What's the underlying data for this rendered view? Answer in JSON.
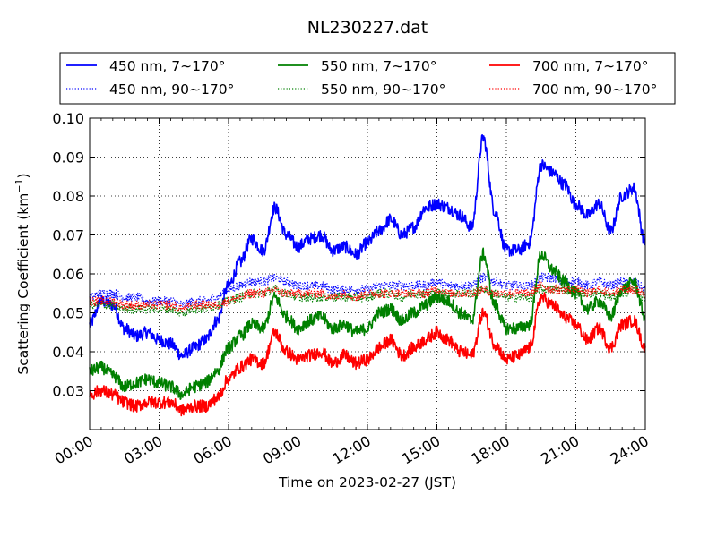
{
  "chart_data": {
    "type": "line",
    "title": "NL230227.dat",
    "xlabel": "Time on 2023-02-27 (JST)",
    "ylabel_main": "Scattering Coefficient (km",
    "ylabel_sup": "−1",
    "ylabel_end": ")",
    "xlim": [
      0,
      24
    ],
    "ylim": [
      0.02,
      0.1
    ],
    "x_ticks": [
      0,
      3,
      6,
      9,
      12,
      15,
      18,
      21,
      24
    ],
    "x_tick_labels": [
      "00:00",
      "03:00",
      "06:00",
      "09:00",
      "12:00",
      "15:00",
      "18:00",
      "21:00",
      "24:00"
    ],
    "y_ticks": [
      0.03,
      0.04,
      0.05,
      0.06,
      0.07,
      0.08,
      0.09,
      0.1
    ],
    "y_tick_labels": [
      "0.03",
      "0.04",
      "0.05",
      "0.06",
      "0.07",
      "0.08",
      "0.09",
      "0.10"
    ],
    "grid": true,
    "legend_position": "top",
    "series": [
      {
        "name": "450 nm, 7∼170°",
        "color": "#0000ff",
        "style": "solid",
        "x": [
          0,
          0.5,
          1,
          1.5,
          2,
          2.5,
          3,
          3.5,
          4,
          4.5,
          5,
          5.5,
          6,
          6.5,
          7,
          7.5,
          8,
          8.5,
          9,
          9.5,
          10,
          10.5,
          11,
          11.5,
          12,
          12.5,
          13,
          13.5,
          14,
          14.5,
          15,
          15.5,
          16,
          16.5,
          17,
          17.5,
          18,
          18.5,
          19,
          19.5,
          20,
          20.5,
          21,
          21.5,
          22,
          22.5,
          23,
          23.5,
          24
        ],
        "y": [
          0.047,
          0.053,
          0.052,
          0.046,
          0.044,
          0.045,
          0.043,
          0.042,
          0.039,
          0.041,
          0.043,
          0.048,
          0.057,
          0.063,
          0.069,
          0.066,
          0.077,
          0.07,
          0.067,
          0.069,
          0.07,
          0.066,
          0.067,
          0.065,
          0.068,
          0.071,
          0.074,
          0.07,
          0.072,
          0.077,
          0.078,
          0.077,
          0.075,
          0.072,
          0.095,
          0.076,
          0.066,
          0.066,
          0.068,
          0.088,
          0.086,
          0.083,
          0.078,
          0.075,
          0.078,
          0.071,
          0.08,
          0.082,
          0.068
        ]
      },
      {
        "name": "450 nm, 90∼170°",
        "color": "#0000ff",
        "style": "dotted",
        "x": [
          0,
          0.5,
          1,
          1.5,
          2,
          2.5,
          3,
          3.5,
          4,
          4.5,
          5,
          5.5,
          6,
          6.5,
          7,
          7.5,
          8,
          8.5,
          9,
          9.5,
          10,
          10.5,
          11,
          11.5,
          12,
          12.5,
          13,
          13.5,
          14,
          14.5,
          15,
          15.5,
          16,
          16.5,
          17,
          17.5,
          18,
          18.5,
          19,
          19.5,
          20,
          20.5,
          21,
          21.5,
          22,
          22.5,
          23,
          23.5,
          24
        ],
        "y": [
          0.054,
          0.055,
          0.055,
          0.054,
          0.054,
          0.053,
          0.053,
          0.053,
          0.052,
          0.053,
          0.053,
          0.054,
          0.056,
          0.057,
          0.058,
          0.058,
          0.059,
          0.058,
          0.057,
          0.057,
          0.057,
          0.056,
          0.056,
          0.056,
          0.056,
          0.057,
          0.057,
          0.057,
          0.057,
          0.057,
          0.058,
          0.057,
          0.057,
          0.057,
          0.059,
          0.058,
          0.057,
          0.057,
          0.057,
          0.059,
          0.059,
          0.058,
          0.058,
          0.057,
          0.058,
          0.057,
          0.058,
          0.058,
          0.056
        ]
      },
      {
        "name": "550 nm, 7∼170°",
        "color": "#008000",
        "style": "solid",
        "x": [
          0,
          0.5,
          1,
          1.5,
          2,
          2.5,
          3,
          3.5,
          4,
          4.5,
          5,
          5.5,
          6,
          6.5,
          7,
          7.5,
          8,
          8.5,
          9,
          9.5,
          10,
          10.5,
          11,
          11.5,
          12,
          12.5,
          13,
          13.5,
          14,
          14.5,
          15,
          15.5,
          16,
          16.5,
          17,
          17.5,
          18,
          18.5,
          19,
          19.5,
          20,
          20.5,
          21,
          21.5,
          22,
          22.5,
          23,
          23.5,
          24
        ],
        "y": [
          0.035,
          0.036,
          0.034,
          0.031,
          0.032,
          0.033,
          0.032,
          0.031,
          0.029,
          0.031,
          0.032,
          0.035,
          0.041,
          0.044,
          0.047,
          0.046,
          0.054,
          0.049,
          0.046,
          0.048,
          0.049,
          0.046,
          0.047,
          0.045,
          0.046,
          0.05,
          0.051,
          0.048,
          0.05,
          0.052,
          0.054,
          0.053,
          0.05,
          0.048,
          0.065,
          0.052,
          0.046,
          0.046,
          0.047,
          0.065,
          0.061,
          0.058,
          0.055,
          0.051,
          0.053,
          0.049,
          0.056,
          0.058,
          0.049
        ]
      },
      {
        "name": "550 nm, 90∼170°",
        "color": "#008000",
        "style": "dotted",
        "x": [
          0,
          0.5,
          1,
          1.5,
          2,
          2.5,
          3,
          3.5,
          4,
          4.5,
          5,
          5.5,
          6,
          6.5,
          7,
          7.5,
          8,
          8.5,
          9,
          9.5,
          10,
          10.5,
          11,
          11.5,
          12,
          12.5,
          13,
          13.5,
          14,
          14.5,
          15,
          15.5,
          16,
          16.5,
          17,
          17.5,
          18,
          18.5,
          19,
          19.5,
          20,
          20.5,
          21,
          21.5,
          22,
          22.5,
          23,
          23.5,
          24
        ],
        "y": [
          0.052,
          0.052,
          0.052,
          0.051,
          0.051,
          0.051,
          0.051,
          0.051,
          0.05,
          0.051,
          0.051,
          0.052,
          0.053,
          0.054,
          0.055,
          0.055,
          0.056,
          0.055,
          0.054,
          0.054,
          0.054,
          0.054,
          0.054,
          0.054,
          0.054,
          0.055,
          0.055,
          0.054,
          0.055,
          0.055,
          0.055,
          0.055,
          0.055,
          0.055,
          0.056,
          0.055,
          0.054,
          0.054,
          0.054,
          0.056,
          0.056,
          0.056,
          0.055,
          0.055,
          0.055,
          0.054,
          0.055,
          0.056,
          0.054
        ]
      },
      {
        "name": "700 nm, 7∼170°",
        "color": "#ff0000",
        "style": "solid",
        "x": [
          0,
          0.5,
          1,
          1.5,
          2,
          2.5,
          3,
          3.5,
          4,
          4.5,
          5,
          5.5,
          6,
          6.5,
          7,
          7.5,
          8,
          8.5,
          9,
          9.5,
          10,
          10.5,
          11,
          11.5,
          12,
          12.5,
          13,
          13.5,
          14,
          14.5,
          15,
          15.5,
          16,
          16.5,
          17,
          17.5,
          18,
          18.5,
          19,
          19.5,
          20,
          20.5,
          21,
          21.5,
          22,
          22.5,
          23,
          23.5,
          24
        ],
        "y": [
          0.029,
          0.03,
          0.029,
          0.027,
          0.026,
          0.027,
          0.027,
          0.027,
          0.025,
          0.026,
          0.026,
          0.028,
          0.033,
          0.036,
          0.038,
          0.037,
          0.045,
          0.04,
          0.038,
          0.039,
          0.04,
          0.037,
          0.039,
          0.037,
          0.038,
          0.041,
          0.043,
          0.039,
          0.041,
          0.043,
          0.045,
          0.043,
          0.04,
          0.039,
          0.05,
          0.042,
          0.038,
          0.039,
          0.041,
          0.054,
          0.052,
          0.049,
          0.047,
          0.043,
          0.046,
          0.041,
          0.047,
          0.048,
          0.041
        ]
      },
      {
        "name": "700 nm, 90∼170°",
        "color": "#ff0000",
        "style": "dotted",
        "x": [
          0,
          0.5,
          1,
          1.5,
          2,
          2.5,
          3,
          3.5,
          4,
          4.5,
          5,
          5.5,
          6,
          6.5,
          7,
          7.5,
          8,
          8.5,
          9,
          9.5,
          10,
          10.5,
          11,
          11.5,
          12,
          12.5,
          13,
          13.5,
          14,
          14.5,
          15,
          15.5,
          16,
          16.5,
          17,
          17.5,
          18,
          18.5,
          19,
          19.5,
          20,
          20.5,
          21,
          21.5,
          22,
          22.5,
          23,
          23.5,
          24
        ],
        "y": [
          0.053,
          0.053,
          0.053,
          0.052,
          0.052,
          0.052,
          0.052,
          0.052,
          0.051,
          0.052,
          0.052,
          0.052,
          0.053,
          0.054,
          0.055,
          0.055,
          0.056,
          0.055,
          0.055,
          0.055,
          0.055,
          0.054,
          0.055,
          0.054,
          0.055,
          0.055,
          0.055,
          0.055,
          0.055,
          0.055,
          0.056,
          0.055,
          0.055,
          0.055,
          0.056,
          0.055,
          0.055,
          0.055,
          0.055,
          0.057,
          0.056,
          0.056,
          0.056,
          0.055,
          0.056,
          0.055,
          0.056,
          0.056,
          0.055
        ]
      }
    ]
  }
}
